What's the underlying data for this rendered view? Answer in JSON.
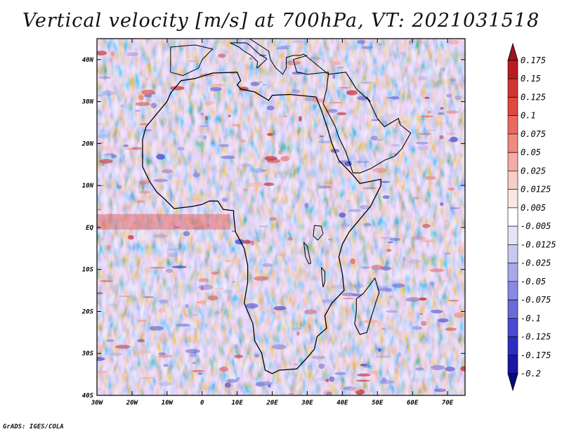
{
  "title": "Vertical velocity [m/s] at 700hPa, VT: 2021031518",
  "credit": "GrADS: IGES/COLA",
  "map": {
    "lon_range": [
      -30,
      75
    ],
    "lat_range": [
      -40,
      45
    ],
    "x_ticks": [
      {
        "lon": -30,
        "label": "30W"
      },
      {
        "lon": -20,
        "label": "20W"
      },
      {
        "lon": -10,
        "label": "10W"
      },
      {
        "lon": 0,
        "label": "0"
      },
      {
        "lon": 10,
        "label": "10E"
      },
      {
        "lon": 20,
        "label": "20E"
      },
      {
        "lon": 30,
        "label": "30E"
      },
      {
        "lon": 40,
        "label": "40E"
      },
      {
        "lon": 50,
        "label": "50E"
      },
      {
        "lon": 60,
        "label": "60E"
      },
      {
        "lon": 70,
        "label": "70E"
      }
    ],
    "y_ticks": [
      {
        "lat": 40,
        "label": "40N"
      },
      {
        "lat": 30,
        "label": "30N"
      },
      {
        "lat": 20,
        "label": "20N"
      },
      {
        "lat": 10,
        "label": "10N"
      },
      {
        "lat": 0,
        "label": "EQ"
      },
      {
        "lat": -10,
        "label": "10S"
      },
      {
        "lat": -20,
        "label": "20S"
      },
      {
        "lat": -30,
        "label": "30S"
      },
      {
        "lat": -40,
        "label": "40S"
      }
    ],
    "africa_outline": [
      [
        -17,
        21
      ],
      [
        -16,
        24
      ],
      [
        -13,
        27
      ],
      [
        -10,
        30
      ],
      [
        -9,
        32
      ],
      [
        -6,
        35
      ],
      [
        -2,
        35.5
      ],
      [
        3,
        36.8
      ],
      [
        10,
        37
      ],
      [
        11,
        35
      ],
      [
        10,
        34
      ],
      [
        11,
        33
      ],
      [
        15,
        32.3
      ],
      [
        19,
        30.3
      ],
      [
        20,
        31.5
      ],
      [
        25,
        31.7
      ],
      [
        30,
        31.3
      ],
      [
        32.5,
        31.1
      ],
      [
        34,
        28
      ],
      [
        36,
        23
      ],
      [
        37,
        20
      ],
      [
        39,
        16
      ],
      [
        43,
        12.5
      ],
      [
        45,
        10.5
      ],
      [
        51,
        11.5
      ],
      [
        51,
        10
      ],
      [
        48,
        5
      ],
      [
        45,
        2
      ],
      [
        42,
        -1
      ],
      [
        40,
        -4
      ],
      [
        39,
        -7
      ],
      [
        40,
        -11
      ],
      [
        40.5,
        -15
      ],
      [
        37,
        -18
      ],
      [
        35,
        -21
      ],
      [
        35.5,
        -24
      ],
      [
        32.8,
        -26
      ],
      [
        32,
        -29
      ],
      [
        30,
        -31
      ],
      [
        27,
        -33.7
      ],
      [
        22,
        -34
      ],
      [
        20,
        -34.8
      ],
      [
        18,
        -34
      ],
      [
        17,
        -30
      ],
      [
        15,
        -27
      ],
      [
        14.5,
        -23
      ],
      [
        12,
        -18
      ],
      [
        13,
        -13
      ],
      [
        13,
        -9
      ],
      [
        12,
        -5
      ],
      [
        9.5,
        -1
      ],
      [
        9,
        3
      ],
      [
        9,
        4
      ],
      [
        6,
        4.3
      ],
      [
        4.5,
        6.3
      ],
      [
        2,
        6.3
      ],
      [
        0,
        5.5
      ],
      [
        -3,
        5
      ],
      [
        -8,
        4.5
      ],
      [
        -11,
        7
      ],
      [
        -13,
        8.5
      ],
      [
        -15,
        11
      ],
      [
        -17,
        14.5
      ],
      [
        -17,
        21
      ]
    ],
    "madagascar_outline": [
      [
        49.3,
        -12
      ],
      [
        50.5,
        -15.5
      ],
      [
        49.5,
        -18
      ],
      [
        48,
        -22
      ],
      [
        47,
        -25
      ],
      [
        45,
        -25.5
      ],
      [
        43.5,
        -23
      ],
      [
        44,
        -20
      ],
      [
        44,
        -17
      ],
      [
        46,
        -15.7
      ],
      [
        48,
        -13.5
      ],
      [
        49.3,
        -12
      ]
    ],
    "arabia_outline": [
      [
        34.5,
        29.5
      ],
      [
        35.5,
        28
      ],
      [
        38,
        24
      ],
      [
        39,
        21.5
      ],
      [
        41,
        18
      ],
      [
        43,
        13
      ],
      [
        45,
        13
      ],
      [
        48,
        14
      ],
      [
        52,
        16
      ],
      [
        55,
        17
      ],
      [
        57,
        18.8
      ],
      [
        59.5,
        22.5
      ],
      [
        56.5,
        24.5
      ],
      [
        56,
        26
      ],
      [
        52,
        24
      ],
      [
        50,
        26
      ],
      [
        48,
        29.5
      ],
      [
        47,
        31
      ],
      [
        48,
        30
      ],
      [
        44,
        33
      ],
      [
        41,
        37
      ],
      [
        36,
        36.5
      ],
      [
        35.5,
        33
      ],
      [
        34.5,
        29.5
      ]
    ],
    "iberia_outline": [
      [
        -9,
        37
      ],
      [
        -9,
        39
      ],
      [
        -9,
        43
      ],
      [
        -2,
        43.5
      ],
      [
        3,
        42.5
      ],
      [
        0,
        40
      ],
      [
        -1,
        38
      ],
      [
        -5.5,
        36.2
      ],
      [
        -9,
        37
      ]
    ],
    "italy_outline": [
      [
        8,
        44
      ],
      [
        12.5,
        44
      ],
      [
        13.5,
        43.5
      ],
      [
        16,
        41.5
      ],
      [
        18.5,
        40.2
      ],
      [
        16,
        38.2
      ],
      [
        15.6,
        38
      ],
      [
        15.8,
        39.5
      ],
      [
        14,
        41
      ],
      [
        12,
        42
      ],
      [
        10.5,
        43
      ],
      [
        8,
        44
      ]
    ],
    "balkans_outline": [
      [
        13.5,
        45
      ],
      [
        19,
        42
      ],
      [
        19.5,
        40
      ],
      [
        21,
        38
      ],
      [
        23,
        36.5
      ],
      [
        24,
        38
      ],
      [
        24,
        40.5
      ],
      [
        26,
        41
      ],
      [
        28,
        41
      ],
      [
        29,
        41.3
      ],
      [
        36,
        36.5
      ],
      [
        36,
        37
      ],
      [
        30,
        36.5
      ],
      [
        27,
        37
      ],
      [
        26,
        40
      ],
      [
        30,
        41
      ]
    ],
    "lakes": [
      {
        "name": "Lake Victoria",
        "points": [
          [
            32,
            0.5
          ],
          [
            34,
            0.3
          ],
          [
            34.5,
            -1.5
          ],
          [
            33,
            -3
          ],
          [
            31.7,
            -2
          ],
          [
            32,
            0.5
          ]
        ]
      },
      {
        "name": "Lake Tanganyika",
        "points": [
          [
            29,
            -3.5
          ],
          [
            30,
            -4.5
          ],
          [
            30.5,
            -6.5
          ],
          [
            31,
            -8.5
          ],
          [
            30.5,
            -8.7
          ],
          [
            29.5,
            -7
          ],
          [
            29,
            -3.5
          ]
        ]
      },
      {
        "name": "Lake Malawi",
        "points": [
          [
            34,
            -9.5
          ],
          [
            35,
            -10.5
          ],
          [
            35,
            -13
          ],
          [
            34.5,
            -14.2
          ],
          [
            34.2,
            -12
          ],
          [
            34,
            -9.5
          ]
        ]
      }
    ]
  },
  "colorbar": {
    "labels": [
      "0.175",
      "0.15",
      "0.125",
      "0.1",
      "0.075",
      "0.05",
      "0.025",
      "0.0125",
      "0.005",
      "-0.005",
      "-0.0125",
      "-0.025",
      "-0.05",
      "-0.075",
      "-0.1",
      "-0.125",
      "-0.175",
      "-0.2"
    ],
    "colors": [
      "#a0141e",
      "#b81d24",
      "#cf3530",
      "#e04840",
      "#ea6a5e",
      "#f08a80",
      "#f5aca3",
      "#f8cdc6",
      "#fbe6e2",
      "#ffffff",
      "#e4e4f8",
      "#c8c8f0",
      "#a9a9ea",
      "#8a8ae2",
      "#6a6ad8",
      "#4a4ad0",
      "#2c2cbe",
      "#1818a4",
      "#0a0a7c"
    ]
  }
}
